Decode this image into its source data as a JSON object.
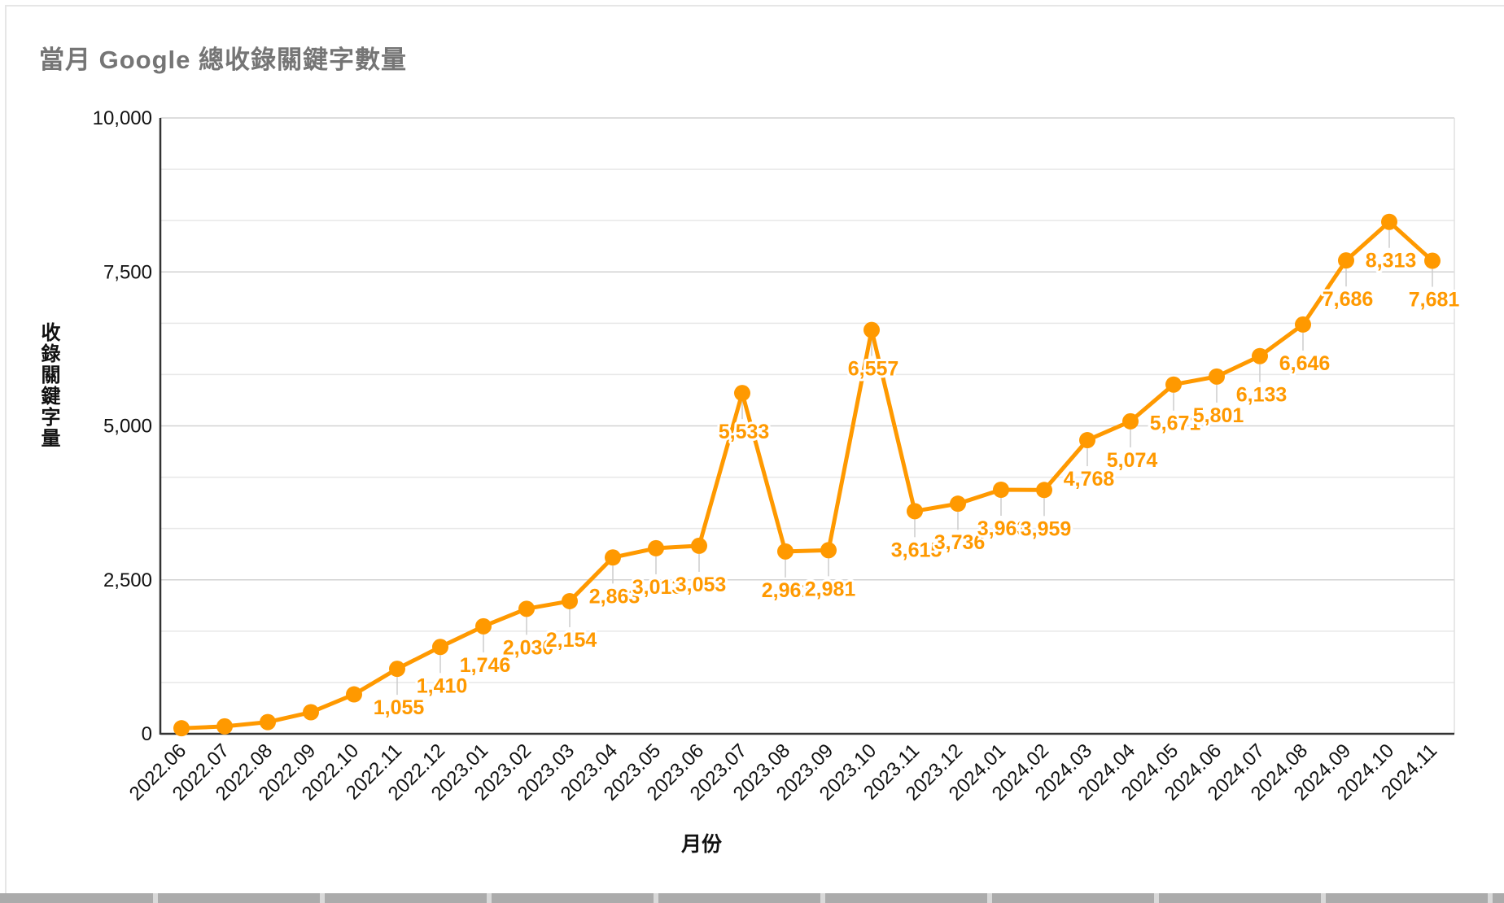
{
  "title": "當月 Google 總收錄關鍵字數量",
  "chart_data": {
    "type": "line",
    "title": "當月 Google 總收錄關鍵字數量",
    "xlabel": "月份",
    "ylabel": "收錄關鍵字量",
    "ylim": [
      0,
      10000
    ],
    "y_ticks": [
      "0",
      "2,500",
      "5,000",
      "7,500",
      "10,000"
    ],
    "grid": true,
    "legend_position": "none",
    "series_color": "#ff9900",
    "categories": [
      "2022.06",
      "2022.07",
      "2022.08",
      "2022.09",
      "2022.10",
      "2022.11",
      "2022.12",
      "2023.01",
      "2023.02",
      "2023.03",
      "2023.04",
      "2023.05",
      "2023.06",
      "2023.07",
      "2023.08",
      "2023.09",
      "2023.10",
      "2023.11",
      "2023.12",
      "2024.01",
      "2024.02",
      "2024.03",
      "2024.04",
      "2024.05",
      "2024.06",
      "2024.07",
      "2024.08",
      "2024.09",
      "2024.10",
      "2024.11"
    ],
    "values": [
      90,
      120,
      190,
      350,
      640,
      1055,
      1410,
      1746,
      2030,
      2154,
      2863,
      3013,
      3053,
      5533,
      2961,
      2981,
      6557,
      3615,
      3736,
      3963,
      3959,
      4768,
      5074,
      5671,
      5801,
      6133,
      6646,
      7686,
      8313,
      7681
    ],
    "point_labels": [
      null,
      null,
      null,
      null,
      null,
      "1,055",
      "1,410",
      "1,746",
      "2,030",
      "2,154",
      "2,863",
      "3,013",
      "3,053",
      "5,533",
      "2,961",
      "2,981",
      "6,557",
      "3,615",
      "3,736",
      "3,963",
      "3,959",
      "4,768",
      "5,074",
      "5,671",
      "5,801",
      "6,133",
      "6,646",
      "7,686",
      "8,313",
      "7,681"
    ]
  }
}
